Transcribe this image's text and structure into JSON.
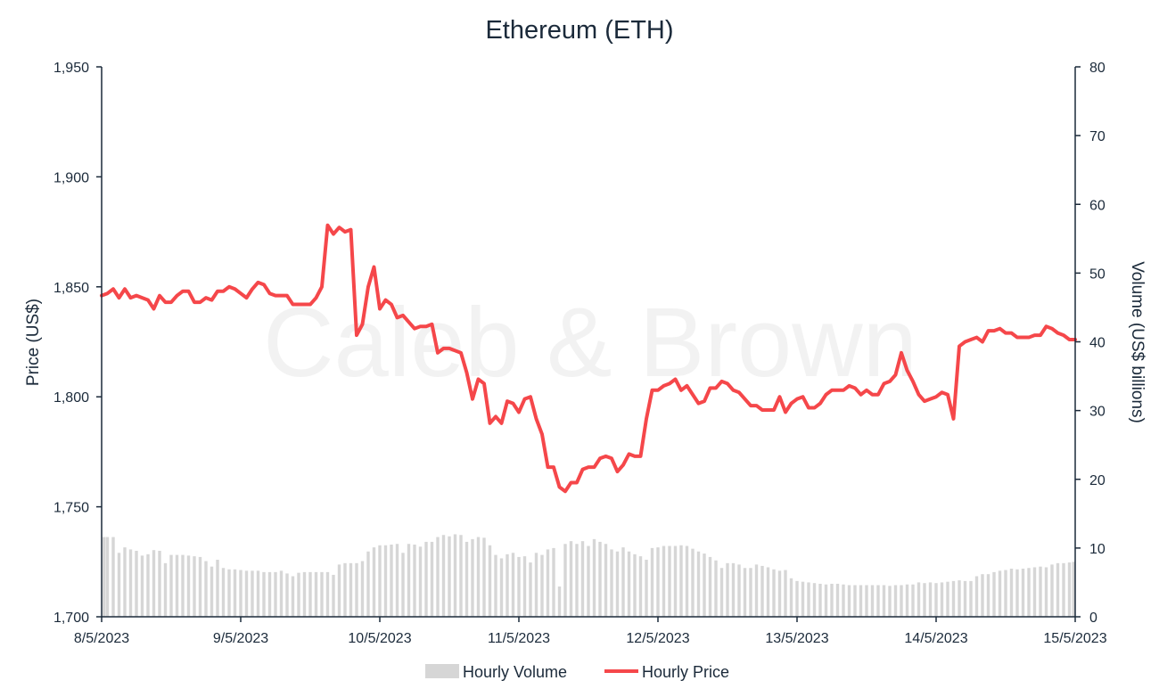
{
  "chart_data": {
    "type": "line",
    "title": "Ethereum (ETH)",
    "watermark": "Caleb & Brown",
    "x_tick_labels": [
      "8/5/2023",
      "9/5/2023",
      "10/5/2023",
      "11/5/2023",
      "12/5/2023",
      "13/5/2023",
      "14/5/2023",
      "15/5/2023"
    ],
    "y_left": {
      "label": "Price (US$)",
      "range": [
        1700,
        1950
      ],
      "ticks": [
        1700,
        1750,
        1800,
        1850,
        1900,
        1950
      ],
      "tick_labels": [
        "1,700",
        "1,750",
        "1,800",
        "1,850",
        "1,900",
        "1,950"
      ]
    },
    "y_right": {
      "label": "Volume (US$ billions)",
      "range": [
        0,
        80
      ],
      "ticks": [
        0,
        10,
        20,
        30,
        40,
        50,
        60,
        70,
        80
      ],
      "tick_labels": [
        "0",
        "10",
        "20",
        "30",
        "40",
        "50",
        "60",
        "70",
        "80"
      ]
    },
    "legend": {
      "position": "bottom-center",
      "volume_label": "Hourly Volume",
      "price_label": "Hourly Price"
    },
    "colors": {
      "price": "#f5474a",
      "volume": "#d6d6d6",
      "axis": "#1b2a3a",
      "watermark": "#e7e7e7"
    },
    "grid": false,
    "x_start": "8/5/2023 00:00",
    "interval_hours": 1,
    "series": [
      {
        "name": "Hourly Price",
        "axis": "left",
        "kind": "line",
        "values": [
          1846,
          1847,
          1849,
          1845,
          1849,
          1845,
          1846,
          1845,
          1844,
          1840,
          1846,
          1843,
          1843,
          1846,
          1848,
          1848,
          1843,
          1843,
          1845,
          1844,
          1848,
          1848,
          1850,
          1849,
          1847,
          1845,
          1849,
          1852,
          1851,
          1847,
          1846,
          1846,
          1846,
          1842,
          1842,
          1842,
          1842,
          1845,
          1850,
          1878,
          1874,
          1877,
          1875,
          1876,
          1828,
          1833,
          1850,
          1859,
          1840,
          1844,
          1842,
          1836,
          1837,
          1834,
          1831,
          1832,
          1832,
          1833,
          1820,
          1822,
          1822,
          1821,
          1820,
          1811,
          1799,
          1808,
          1806,
          1788,
          1791,
          1788,
          1798,
          1797,
          1793,
          1799,
          1800,
          1790,
          1783,
          1768,
          1768,
          1759,
          1757,
          1761,
          1761,
          1767,
          1768,
          1768,
          1772,
          1773,
          1772,
          1766,
          1769,
          1774,
          1773,
          1773,
          1790,
          1803,
          1803,
          1805,
          1806,
          1808,
          1803,
          1805,
          1801,
          1797,
          1798,
          1804,
          1804,
          1807,
          1806,
          1803,
          1802,
          1799,
          1796,
          1796,
          1794,
          1794,
          1794,
          1800,
          1793,
          1797,
          1799,
          1800,
          1795,
          1795,
          1797,
          1801,
          1803,
          1803,
          1803,
          1805,
          1804,
          1801,
          1803,
          1801,
          1801,
          1806,
          1807,
          1810,
          1820,
          1812,
          1807,
          1801,
          1798,
          1799,
          1800,
          1802,
          1801,
          1790,
          1823,
          1825,
          1826,
          1827,
          1825,
          1830,
          1830,
          1831,
          1829,
          1829,
          1827,
          1827,
          1827,
          1828,
          1828,
          1832,
          1831,
          1829,
          1828,
          1826,
          1826
        ]
      },
      {
        "name": "Hourly Volume",
        "axis": "right",
        "kind": "bar",
        "values": [
          11.6,
          11.6,
          11.6,
          9.3,
          10.1,
          9.8,
          9.6,
          8.9,
          9.1,
          9.7,
          9.6,
          7.8,
          9,
          9,
          9,
          8.9,
          8.8,
          8.7,
          8.1,
          7.3,
          8.3,
          7.1,
          6.9,
          6.9,
          6.8,
          6.7,
          6.7,
          6.7,
          6.5,
          6.5,
          6.5,
          6.7,
          6.3,
          5.9,
          6.4,
          6.5,
          6.5,
          6.5,
          6.5,
          6.5,
          6.1,
          7.6,
          7.8,
          7.8,
          7.8,
          8.1,
          9.5,
          10.1,
          10.4,
          10.4,
          10.5,
          10.6,
          9.3,
          10.6,
          10.5,
          10.2,
          10.9,
          10.9,
          11.6,
          11.9,
          11.7,
          12,
          11.9,
          10.9,
          11.3,
          11.6,
          11.5,
          10.4,
          9,
          8.5,
          9.1,
          9.3,
          8.7,
          8.8,
          7.9,
          9.3,
          9,
          9.8,
          10,
          4.4,
          10.6,
          11,
          10.6,
          11,
          10.3,
          11.3,
          10.9,
          10.6,
          9.8,
          9.5,
          10.1,
          9.5,
          9.1,
          8.8,
          8.3,
          10,
          10.1,
          10.3,
          10.3,
          10.3,
          10.4,
          10.3,
          9.9,
          9.5,
          9.2,
          8.7,
          8.2,
          7.1,
          7.8,
          7.8,
          7.6,
          7.1,
          7.1,
          7.6,
          7.4,
          7.2,
          6.9,
          6.7,
          6.8,
          5.6,
          5.2,
          5.1,
          5,
          4.9,
          4.8,
          4.7,
          4.8,
          4.8,
          4.7,
          4.6,
          4.6,
          4.6,
          4.6,
          4.6,
          4.6,
          4.6,
          4.5,
          4.6,
          4.6,
          4.7,
          4.7,
          5,
          4.9,
          5,
          4.9,
          5,
          5.1,
          5.2,
          5.3,
          5.2,
          5.2,
          5.9,
          6.2,
          6.2,
          6.5,
          6.7,
          6.8,
          7,
          6.9,
          7,
          7.1,
          7.2,
          7.3,
          7.2,
          7.6,
          7.8,
          7.8,
          7.9,
          8,
          7.9,
          7.9,
          7.7,
          7.9
        ]
      }
    ]
  }
}
